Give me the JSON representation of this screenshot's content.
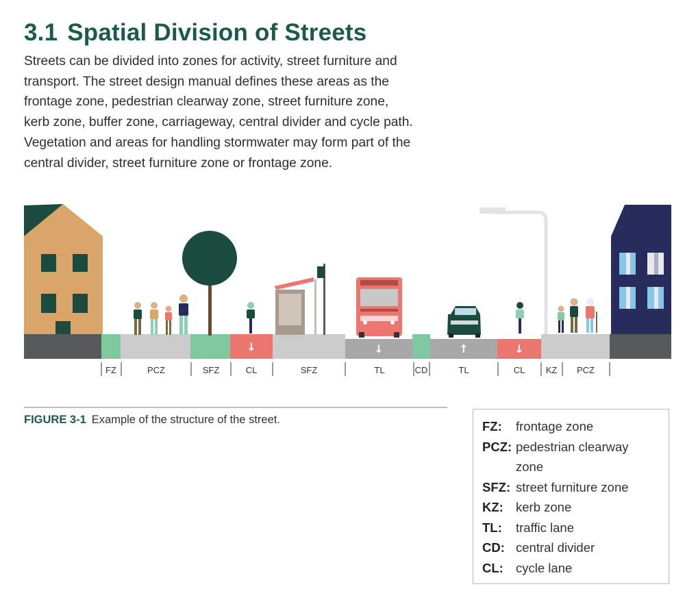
{
  "header": {
    "section_number": "3.1",
    "title": "Spatial Division of Streets"
  },
  "intro_lines": [
    "Streets can be divided into zones for activity, street furniture and",
    "transport. The street design manual defines these areas as the",
    "frontage zone, pedestrian clearway zone, street furniture zone,",
    "kerb zone, buffer zone, carriageway, central divider and cycle path.",
    "Vegetation and areas for handling stormwater may form part of the",
    "central divider, street furniture zone or frontage zone."
  ],
  "illustration": {
    "zone_labels": [
      "FZ",
      "PCZ",
      "SFZ",
      "CL",
      "SFZ",
      "TL",
      "CD",
      "TL",
      "CL",
      "KZ",
      "PCZ"
    ],
    "lane_arrows": [
      "↓",
      "↓",
      "↑",
      "↓"
    ],
    "colors": {
      "sidewalk": "#cccccc",
      "road": "#a8a8a8",
      "green_zone": "#7fc8a0",
      "cycle_lane": "#ec7670",
      "left_building": "#d9a56b",
      "right_building": "#272c5d",
      "roof": "#1b4a3f",
      "tree": "#1b4a3f"
    }
  },
  "figure": {
    "label": "FIGURE 3-1",
    "caption": "Example of the structure of the street."
  },
  "legend": [
    {
      "abbr": "FZ:",
      "desc": "frontage zone"
    },
    {
      "abbr": "PCZ:",
      "desc": "pedestrian clearway"
    },
    {
      "abbr": "",
      "desc": "zone"
    },
    {
      "abbr": "SFZ:",
      "desc": "street furniture zone"
    },
    {
      "abbr": "KZ:",
      "desc": "kerb zone"
    },
    {
      "abbr": "TL:",
      "desc": "traffic lane"
    },
    {
      "abbr": "CD:",
      "desc": "central divider"
    },
    {
      "abbr": "CL:",
      "desc": "cycle lane"
    }
  ]
}
